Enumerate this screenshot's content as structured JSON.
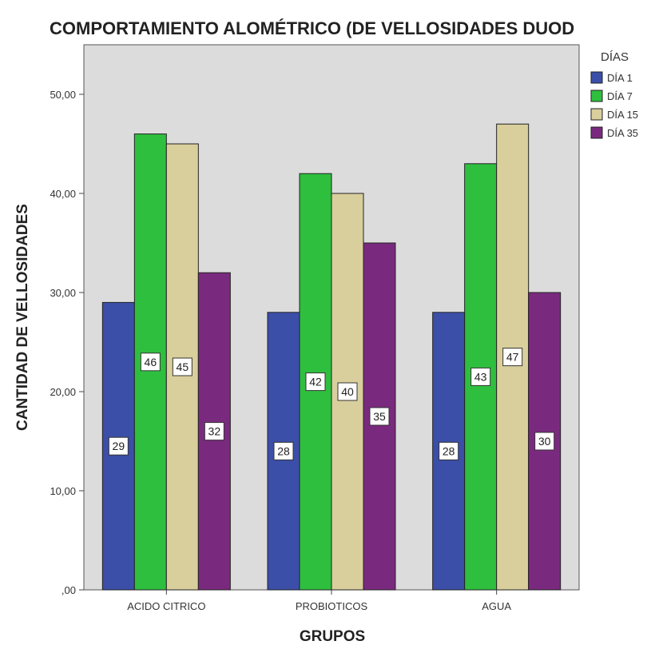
{
  "chart_data": {
    "type": "bar",
    "title": "COMPORTAMIENTO ALOMÉTRICO (DE VELLOSIDADES DUOD",
    "xlabel": "GRUPOS",
    "ylabel": "CANTIDAD DE VELLOSIDADES",
    "categories": [
      "ACIDO CITRICO",
      "PROBIOTICOS",
      "AGUA"
    ],
    "series": [
      {
        "name": "DÍA 1",
        "values": [
          29,
          28,
          28
        ],
        "color": "#3b4fa8"
      },
      {
        "name": "DÍA 7",
        "values": [
          46,
          42,
          43
        ],
        "color": "#2fbf3f"
      },
      {
        "name": "DÍA 15",
        "values": [
          45,
          40,
          47
        ],
        "color": "#d8cf9c"
      },
      {
        "name": "DÍA 35",
        "values": [
          32,
          35,
          30
        ],
        "color": "#7a2a7e"
      }
    ],
    "ylim": [
      0,
      55
    ],
    "yticks": [
      ",00",
      "10,00",
      "20,00",
      "30,00",
      "40,00",
      "50,00"
    ],
    "ytick_values": [
      0,
      10,
      20,
      30,
      40,
      50
    ],
    "legend": {
      "title": "DÍAS",
      "placement": "right"
    },
    "data_labels": true,
    "grid": false,
    "plot_background": "#dcdcdc"
  }
}
